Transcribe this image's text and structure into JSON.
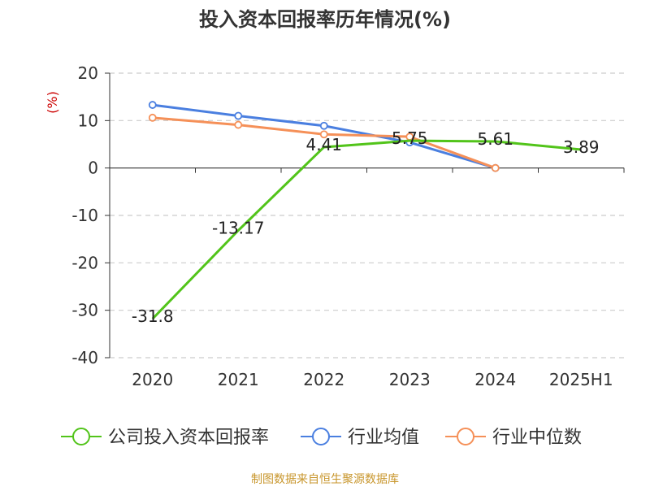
{
  "chart_data": {
    "type": "line",
    "title": "投入资本回报率历年情况(%)",
    "ylabel": "(%)",
    "xlabel": "",
    "categories": [
      "2020",
      "2021",
      "2022",
      "2023",
      "2024",
      "2025H1"
    ],
    "ylim": [
      -40,
      20
    ],
    "yticks": [
      20,
      10,
      0,
      -10,
      -20,
      -30,
      -40
    ],
    "grid": true,
    "legend_position": "bottom",
    "series": [
      {
        "name": "公司投入资本回报率",
        "color": "#52c41a",
        "values": [
          -31.8,
          -13.17,
          4.41,
          5.75,
          5.61,
          3.89
        ],
        "labels": [
          "-31.8",
          "-13.17",
          "4.41",
          "5.75",
          "5.61",
          "3.89"
        ]
      },
      {
        "name": "行业均值",
        "color": "#4a7fe0",
        "values": [
          13.3,
          11.0,
          8.9,
          5.4,
          0,
          null
        ]
      },
      {
        "name": "行业中位数",
        "color": "#f59058",
        "values": [
          10.6,
          9.1,
          7.1,
          6.6,
          0,
          null
        ]
      }
    ]
  },
  "source_note": "制图数据来自恒生聚源数据库",
  "colors": {
    "axis": "#333333",
    "grid": "#cccccc",
    "ylabel": "#cc0000",
    "source": "#c8962c"
  }
}
